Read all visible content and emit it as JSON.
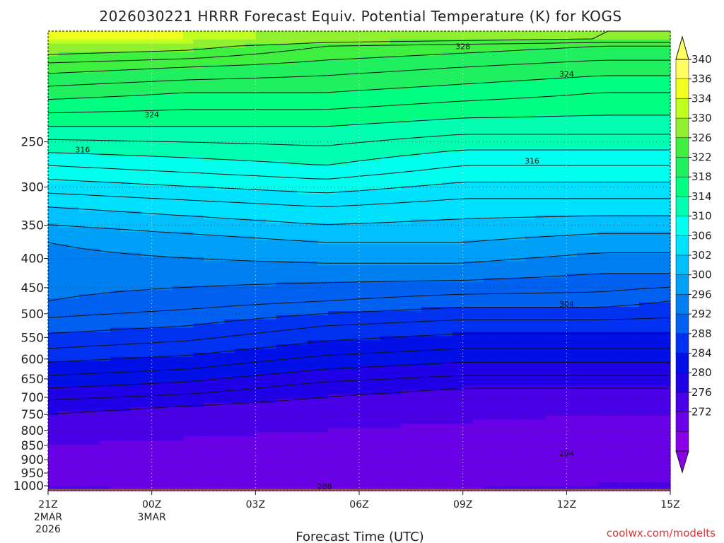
{
  "chart_data": {
    "type": "heatmap",
    "title": "2026030221 HRRR Forecast Equiv. Potential Temperature (K) for KOGS",
    "xlabel": "Forecast Time (UTC)",
    "ylabel": "",
    "credit": "coolwx.com/modelts",
    "x_hours": [
      0,
      18
    ],
    "x_ticks": [
      {
        "hour": 0,
        "label": "21Z",
        "date": "2MAR",
        "year": "2026"
      },
      {
        "hour": 3,
        "label": "00Z",
        "date": "3MAR",
        "year": ""
      },
      {
        "hour": 6,
        "label": "03Z",
        "date": "",
        "year": ""
      },
      {
        "hour": 9,
        "label": "06Z",
        "date": "",
        "year": ""
      },
      {
        "hour": 12,
        "label": "09Z",
        "date": "",
        "year": ""
      },
      {
        "hour": 15,
        "label": "12Z",
        "date": "",
        "year": ""
      },
      {
        "hour": 18,
        "label": "15Z",
        "date": "",
        "year": ""
      }
    ],
    "y_pressure_range_hPa": [
      1020,
      160
    ],
    "y_ticks": [
      250,
      300,
      350,
      400,
      450,
      500,
      550,
      600,
      650,
      700,
      750,
      800,
      850,
      900,
      950,
      1000
    ],
    "colorbar": {
      "levels": [
        272,
        276,
        280,
        284,
        288,
        292,
        296,
        300,
        302,
        304,
        306,
        310,
        314,
        318,
        322,
        326,
        330,
        334,
        336,
        340
      ],
      "labels": [
        "340",
        "336",
        "334",
        "330",
        "326",
        "322",
        "318",
        "314",
        "310",
        "306",
        "302",
        "300",
        "296",
        "292",
        "288",
        "284",
        "280",
        "276",
        "272"
      ],
      "colors": [
        "#8a00e6",
        "#6a00e6",
        "#4a00e6",
        "#2000e6",
        "#0010e6",
        "#0030f0",
        "#0060f0",
        "#0080f0",
        "#00a0f8",
        "#00c0ff",
        "#00e0ff",
        "#00ffee",
        "#00ffb0",
        "#00ff80",
        "#20f060",
        "#40f040",
        "#90f030",
        "#c0ff20",
        "#f0ff20",
        "#ffff60"
      ]
    },
    "profiles": [
      {
        "hour": 0,
        "levels_hPa": [
          1015,
          975,
          925,
          875,
          825,
          775,
          725,
          675,
          625,
          575,
          525,
          475,
          425,
          375,
          325,
          275,
          235,
          205,
          185,
          170,
          165
        ],
        "values_K": [
          281,
          279,
          278,
          279,
          281,
          283,
          285,
          288,
          291,
          294,
          297,
          300,
          301,
          302,
          306,
          312,
          318,
          323,
          327,
          332,
          338
        ]
      },
      {
        "hour": 4,
        "levels_hPa": [
          1015,
          975,
          925,
          875,
          825,
          775,
          725,
          675,
          625,
          575,
          525,
          475,
          425,
          375,
          325,
          275,
          235,
          205,
          185,
          170,
          165
        ],
        "values_K": [
          279,
          277,
          277,
          278,
          280,
          282,
          284,
          287,
          290,
          293,
          296,
          299,
          301,
          303,
          307,
          313,
          318,
          322,
          326,
          331,
          336
        ]
      },
      {
        "hour": 8,
        "levels_hPa": [
          1015,
          975,
          925,
          875,
          825,
          775,
          725,
          675,
          625,
          575,
          525,
          475,
          425,
          375,
          325,
          275,
          235,
          205,
          185,
          170,
          165
        ],
        "values_K": [
          279,
          277,
          277,
          277,
          279,
          281,
          283,
          285,
          288,
          291,
          294,
          298,
          301,
          304,
          308,
          314,
          318,
          322,
          325,
          328,
          332
        ]
      },
      {
        "hour": 12,
        "levels_hPa": [
          1015,
          975,
          925,
          875,
          825,
          775,
          725,
          675,
          625,
          575,
          525,
          475,
          425,
          375,
          325,
          275,
          235,
          205,
          185,
          170,
          165
        ],
        "values_K": [
          280,
          277,
          276,
          276,
          278,
          280,
          282,
          284,
          287,
          290,
          293,
          297,
          301,
          304,
          307,
          312,
          317,
          321,
          324,
          327,
          331
        ]
      },
      {
        "hour": 16,
        "levels_hPa": [
          1015,
          975,
          925,
          875,
          825,
          775,
          725,
          675,
          625,
          575,
          525,
          475,
          425,
          375,
          325,
          275,
          235,
          205,
          185,
          170,
          165
        ],
        "values_K": [
          282,
          278,
          276,
          276,
          277,
          279,
          281,
          284,
          287,
          290,
          293,
          297,
          300,
          303,
          307,
          312,
          317,
          320,
          323,
          326,
          330
        ]
      },
      {
        "hour": 18,
        "levels_hPa": [
          1015,
          975,
          925,
          875,
          825,
          775,
          725,
          675,
          625,
          575,
          525,
          475,
          425,
          375,
          325,
          275,
          235,
          205,
          185,
          170,
          165
        ],
        "values_K": [
          283,
          279,
          276,
          276,
          277,
          279,
          281,
          284,
          287,
          290,
          293,
          296,
          300,
          303,
          307,
          312,
          317,
          320,
          323,
          326,
          330
        ]
      }
    ],
    "contour_labels": [
      {
        "text": "328",
        "hour": 12.0,
        "hPa": 170
      },
      {
        "text": "324",
        "hour": 15.0,
        "hPa": 190
      },
      {
        "text": "324",
        "hour": 3.0,
        "hPa": 224
      },
      {
        "text": "316",
        "hour": 1.0,
        "hPa": 258
      },
      {
        "text": "316",
        "hour": 14.0,
        "hPa": 270
      },
      {
        "text": "304",
        "hour": 15.0,
        "hPa": 481
      },
      {
        "text": "284",
        "hour": 15.0,
        "hPa": 877
      },
      {
        "text": "288",
        "hour": 8.0,
        "hPa": 1002
      }
    ],
    "ground_color": "#a0522d"
  }
}
